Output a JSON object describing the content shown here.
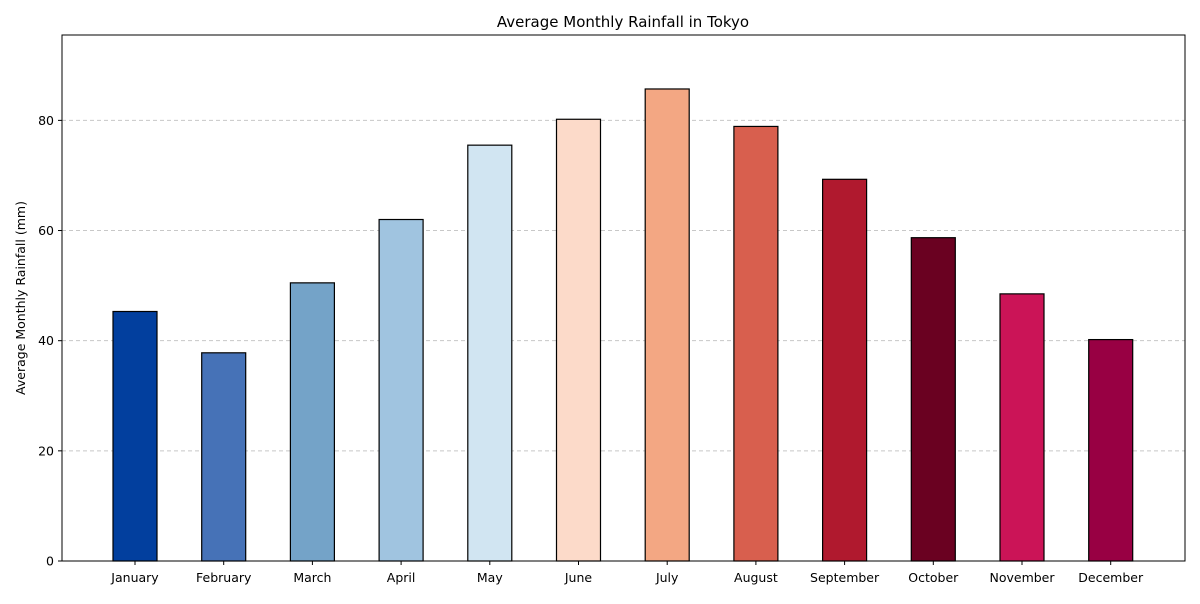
{
  "chart_data": {
    "type": "bar",
    "title": "Average Monthly Rainfall in Tokyo",
    "xlabel": "",
    "ylabel": "Average Monthly Rainfall (mm)",
    "categories": [
      "January",
      "February",
      "March",
      "April",
      "May",
      "June",
      "July",
      "August",
      "September",
      "October",
      "November",
      "December"
    ],
    "values": [
      45.3,
      37.8,
      50.5,
      62.0,
      75.5,
      80.2,
      85.7,
      78.9,
      69.3,
      58.7,
      48.5,
      40.2
    ],
    "colors": [
      "#023f9e",
      "#4672b7",
      "#74a3c8",
      "#a0c4e0",
      "#d1e5f2",
      "#fcdac9",
      "#f3a783",
      "#d85f4e",
      "#b0192e",
      "#6a0121",
      "#cb1457",
      "#980043"
    ],
    "ylim": [
      0,
      95.5
    ],
    "yticks": [
      0,
      20,
      40,
      60,
      80
    ],
    "ytick_labels": [
      "0",
      "20",
      "40",
      "60",
      "80"
    ],
    "grid": "horizontal dashed",
    "legend": "none"
  }
}
